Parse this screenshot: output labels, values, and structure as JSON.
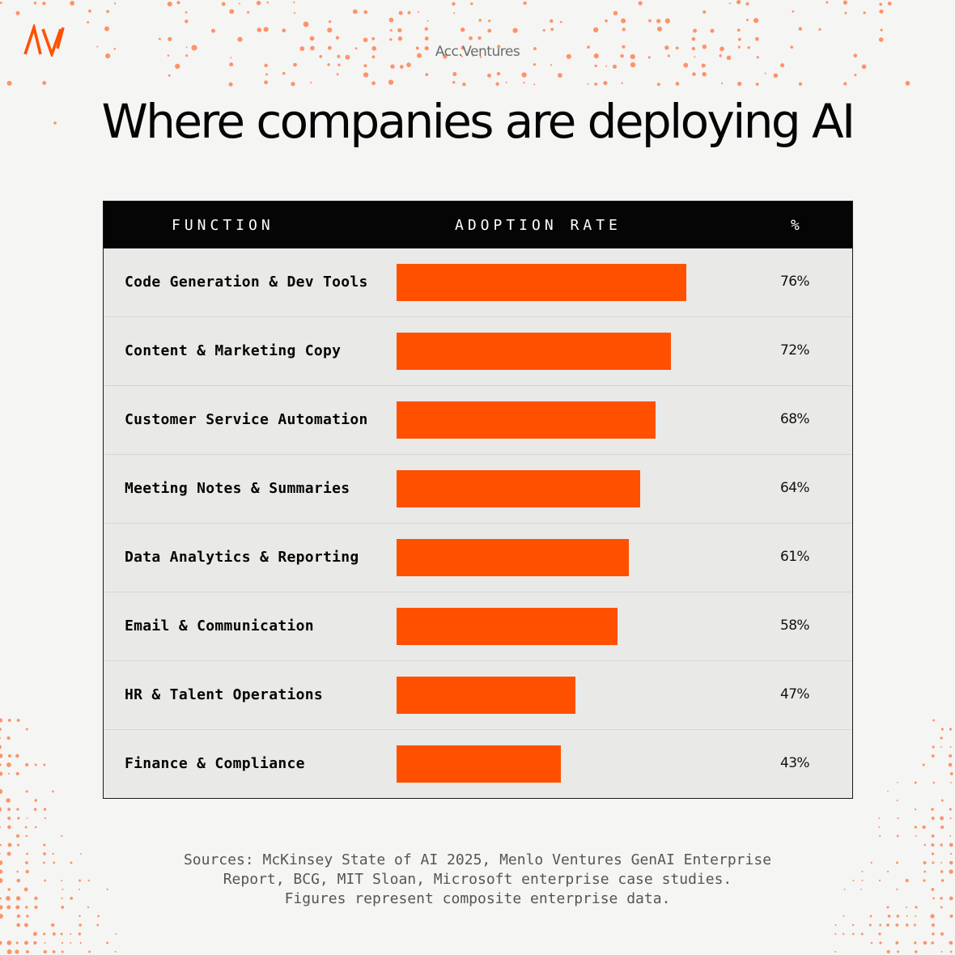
{
  "brand": {
    "logo_text": "AV",
    "name": "Acc.Ventures",
    "accent_color": "#ff5000"
  },
  "title": "Where companies are deploying AI",
  "chart_data": {
    "type": "bar",
    "orientation": "horizontal",
    "title": "Where companies are deploying AI",
    "columns": [
      "FUNCTION",
      "ADOPTION RATE",
      "%"
    ],
    "categories": [
      "Code Generation & Dev Tools",
      "Content & Marketing Copy",
      "Customer Service Automation",
      "Meeting Notes & Summaries",
      "Data Analytics & Reporting",
      "Email & Communication",
      "HR & Talent Operations",
      "Finance & Compliance"
    ],
    "values": [
      76,
      72,
      68,
      64,
      61,
      58,
      47,
      43
    ],
    "value_labels": [
      "76%",
      "72%",
      "68%",
      "64%",
      "61%",
      "58%",
      "47%",
      "43%"
    ],
    "unit": "%",
    "xlim": [
      0,
      100
    ],
    "bar_color": "#ff5000"
  },
  "sources": [
    "Sources: McKinsey State of AI 2025, Menlo Ventures GenAI Enterprise",
    "Report, BCG, MIT Sloan, Microsoft enterprise case studies.",
    "Figures represent composite enterprise data."
  ]
}
